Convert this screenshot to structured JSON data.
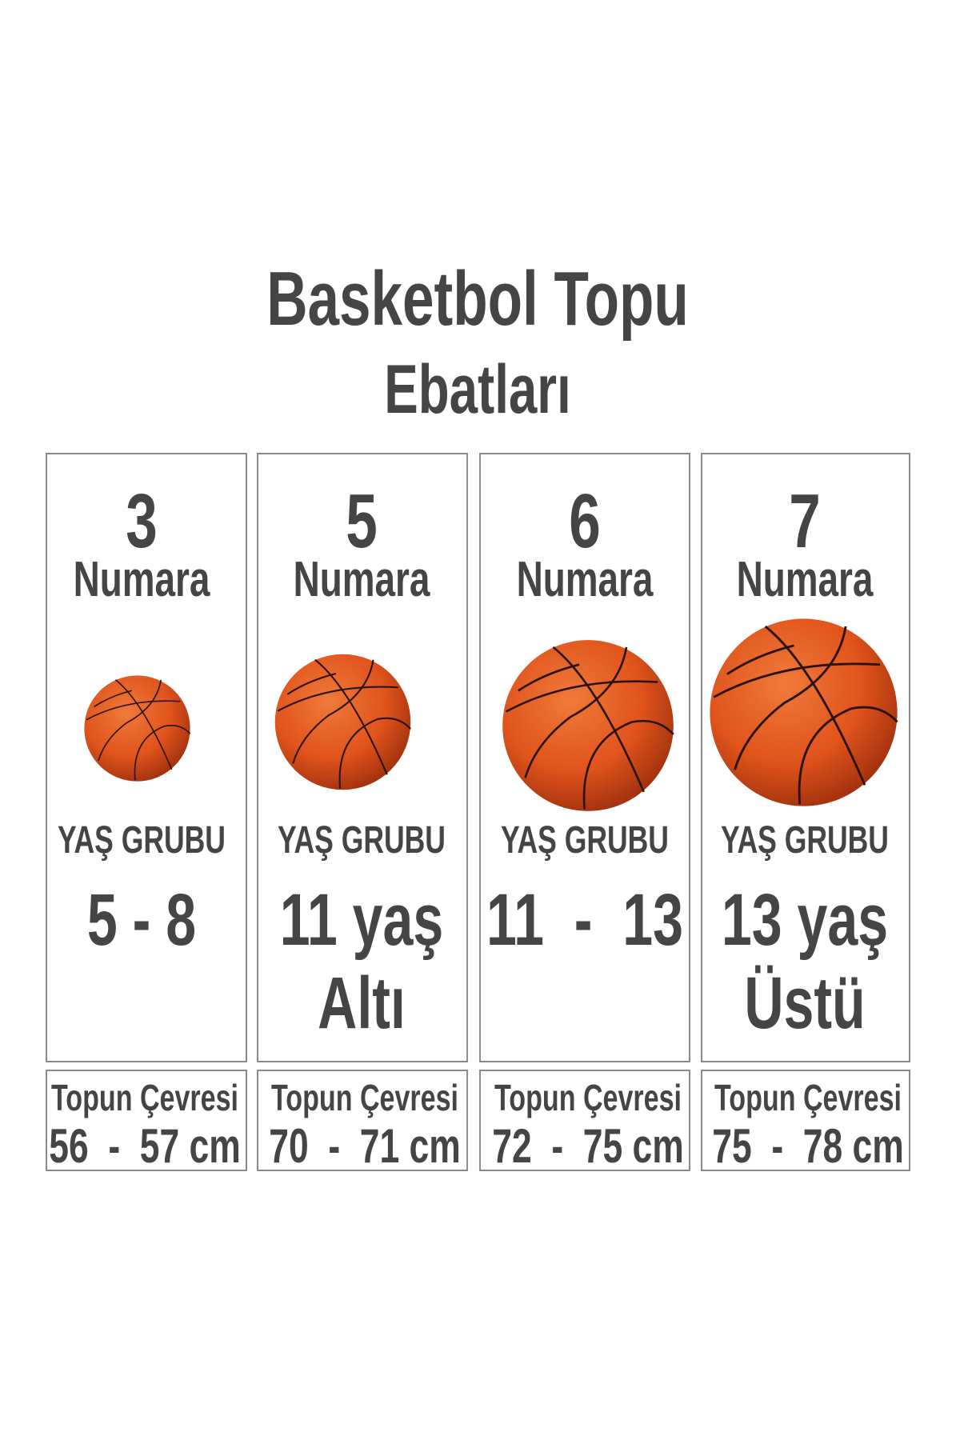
{
  "title": {
    "line1": "Basketbol Topu",
    "line2": "Ebatları"
  },
  "columns": [
    {
      "number": "3",
      "numara_label": "Numara",
      "age_label": "YAŞ GRUBU",
      "age_line1": "5 - 8",
      "age_line2": "",
      "circ_label": "Topun Çevresi",
      "circ_value": "56  -  57 cm"
    },
    {
      "number": "5",
      "numara_label": "Numara",
      "age_label": "YAŞ GRUBU",
      "age_line1": "11 yaş",
      "age_line2": "Altı",
      "circ_label": "Topun Çevresi",
      "circ_value": "70  -  71 cm"
    },
    {
      "number": "6",
      "numara_label": "Numara",
      "age_label": "YAŞ GRUBU",
      "age_line1": "11  -  13",
      "age_line2": "",
      "circ_label": "Topun Çevresi",
      "circ_value": "72  -  75 cm"
    },
    {
      "number": "7",
      "numara_label": "Numara",
      "age_label": "YAŞ GRUBU",
      "age_line1": "13 yaş",
      "age_line2": "Üstü",
      "circ_label": "Topun Çevresi",
      "circ_value": "75  -  78 cm"
    }
  ],
  "colors": {
    "text": "#454545",
    "ball": "#e0531c",
    "border": "#8a8a8a"
  }
}
